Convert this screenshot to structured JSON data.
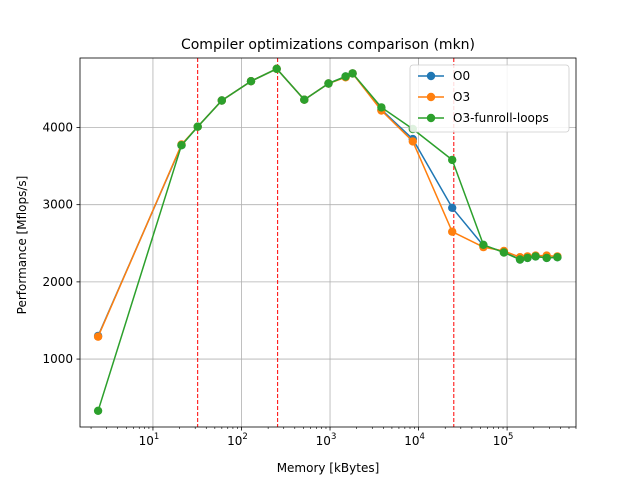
{
  "chart_data": {
    "type": "line",
    "title": "Compiler optimizations comparison (mkn)",
    "xlabel": "Memory [kBytes]",
    "ylabel": "Performance [Mflops/s]",
    "xscale": "log",
    "xlim": [
      1.5,
      600000
    ],
    "ylim": [
      120,
      4900
    ],
    "grid": true,
    "legend": "top-right",
    "x_ticks": [
      {
        "value": 10,
        "base": "10",
        "exp": "1"
      },
      {
        "value": 100,
        "base": "10",
        "exp": "2"
      },
      {
        "value": 1000,
        "base": "10",
        "exp": "3"
      },
      {
        "value": 10000,
        "base": "10",
        "exp": "4"
      },
      {
        "value": 100000,
        "base": "10",
        "exp": "5"
      }
    ],
    "y_ticks": [
      "1000",
      "2000",
      "3000",
      "4000"
    ],
    "y_tick_values": [
      1000,
      2000,
      3000,
      4000
    ],
    "vlines": [
      32,
      256,
      25000
    ],
    "vline_color": "#ff0000",
    "series": [
      {
        "name": "O0",
        "color": "#1f77b4",
        "x": [
          2.4,
          21,
          32,
          60,
          128,
          250,
          512,
          960,
          1500,
          1800,
          3800,
          8600,
          24000,
          54000,
          92000,
          140000,
          170000,
          210000,
          280000,
          370000
        ],
        "y": [
          1300,
          3770,
          4010,
          4350,
          4600,
          4760,
          4360,
          4570,
          4660,
          4700,
          4230,
          3850,
          2960,
          2470,
          2390,
          2290,
          2310,
          2330,
          2310,
          2320
        ]
      },
      {
        "name": "O3",
        "color": "#ff7f0e",
        "x": [
          2.4,
          21,
          32,
          60,
          128,
          250,
          512,
          960,
          1500,
          1800,
          3800,
          8600,
          24000,
          54000,
          92000,
          140000,
          170000,
          210000,
          280000,
          370000
        ],
        "y": [
          1290,
          3780,
          4010,
          4350,
          4600,
          4760,
          4360,
          4570,
          4650,
          4700,
          4220,
          3820,
          2650,
          2450,
          2400,
          2320,
          2330,
          2340,
          2340,
          2330
        ]
      },
      {
        "name": "O3-funroll-loops",
        "color": "#2ca02c",
        "x": [
          2.4,
          21,
          32,
          60,
          128,
          250,
          512,
          960,
          1500,
          1800,
          3800,
          8600,
          24000,
          54000,
          92000,
          140000,
          170000,
          210000,
          280000,
          370000
        ],
        "y": [
          330,
          3770,
          4010,
          4350,
          4600,
          4760,
          4360,
          4570,
          4660,
          4700,
          4260,
          3980,
          3580,
          2480,
          2380,
          2290,
          2310,
          2330,
          2310,
          2320
        ]
      }
    ]
  }
}
